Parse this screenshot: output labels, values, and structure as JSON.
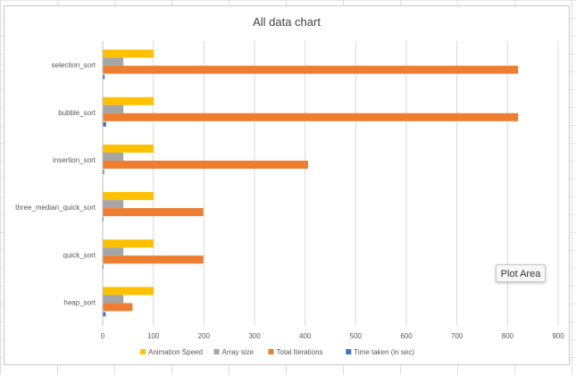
{
  "chart_data": {
    "type": "bar",
    "orientation": "horizontal",
    "title": "All data chart",
    "categories": [
      "selection_sort",
      "bubble_sort",
      "insertion_sort",
      "three_median_quick_sort",
      "quick_sort",
      "heap_sort"
    ],
    "series": [
      {
        "name": "Animation Speed",
        "color": "#FFC000",
        "values": [
          100,
          100,
          100,
          100,
          100,
          100
        ]
      },
      {
        "name": "Array size",
        "color": "#A5A5A5",
        "values": [
          40,
          40,
          40,
          40,
          40,
          40
        ]
      },
      {
        "name": "Total Iterations",
        "color": "#ED7D31",
        "values": [
          820,
          820,
          405,
          198,
          198,
          58
        ]
      },
      {
        "name": "Time taken (in sec)",
        "color": "#4472C4",
        "values": [
          3,
          6,
          2,
          1,
          1,
          5
        ]
      }
    ],
    "xlim": [
      0,
      900
    ],
    "xticks": [
      "0",
      "100",
      "200",
      "300",
      "400",
      "500",
      "600",
      "700",
      "800",
      "900"
    ],
    "grid": true,
    "legend_position": "bottom"
  },
  "tooltip": {
    "label": "Plot Area"
  }
}
